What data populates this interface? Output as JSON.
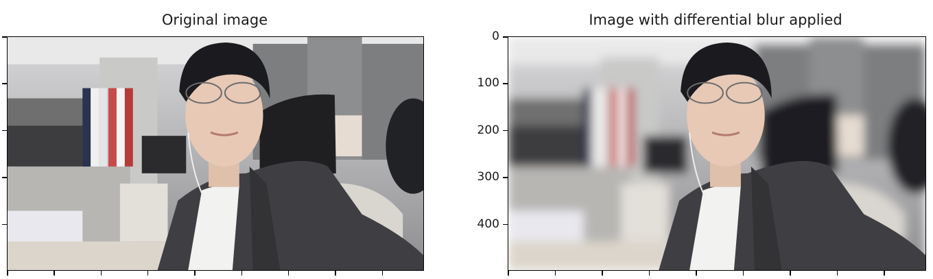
{
  "chart_data": [
    {
      "type": "image",
      "title": "Original image",
      "content": "selfie-in-office",
      "xlim": [
        0,
        890
      ],
      "ylim": [
        500,
        0
      ],
      "yticks": [],
      "xticks": [
        0,
        100,
        200,
        300,
        400,
        500,
        600,
        700,
        800
      ],
      "show_tick_labels": false,
      "blur": false
    },
    {
      "type": "image",
      "title": "Image with differential blur applied",
      "content": "selfie-in-office-with-background-blur",
      "xlim": [
        0,
        890
      ],
      "ylim": [
        500,
        0
      ],
      "yticks": [
        0,
        100,
        200,
        300,
        400
      ],
      "xticks": [
        0,
        100,
        200,
        300,
        400,
        500,
        600,
        700,
        800
      ],
      "show_tick_labels": true,
      "blur": true
    }
  ],
  "colors": {
    "wall": "#9a9a9a",
    "ceiling": "#e9e9ea",
    "jacket": "#3f3f43",
    "shirt": "#f2f2f0",
    "hair": "#1b1b1f",
    "skin": "#e7c9b6",
    "chair": "#1f1f22"
  }
}
